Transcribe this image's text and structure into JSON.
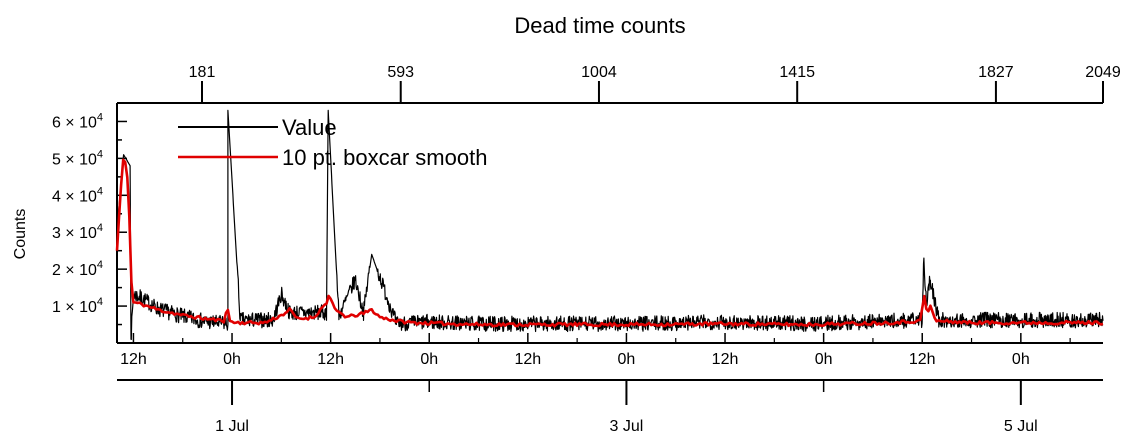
{
  "chart_data": {
    "type": "line",
    "title": "Dead time counts",
    "ylabel": "Counts",
    "ylim": [
      0,
      65000
    ],
    "top_axis": {
      "ticks": [
        181,
        593,
        1004,
        1415,
        1827,
        2049
      ],
      "labels": [
        "181",
        "593",
        "1004",
        "1415",
        "1827",
        "2049"
      ]
    },
    "y_axis": {
      "ticks": [
        10000,
        20000,
        30000,
        40000,
        50000,
        60000
      ],
      "mantissas": [
        "1",
        "2",
        "3",
        "4",
        "5",
        "6"
      ],
      "times": "×",
      "base": "10",
      "exponent": "4"
    },
    "time_axis": {
      "range_hours": [
        -14,
        106
      ],
      "hour_ticks": [
        -12,
        0,
        12,
        24,
        36,
        48,
        60,
        72,
        84,
        96
      ],
      "hour_labels": [
        "12h",
        "0h",
        "12h",
        "0h",
        "12h",
        "0h",
        "12h",
        "0h",
        "12h",
        "0h"
      ],
      "date_ticks": [
        0,
        48,
        96
      ],
      "date_labels": [
        "1 Jul",
        "3 Jul",
        "5 Jul"
      ]
    },
    "legend": {
      "position": "top-left",
      "entries": [
        {
          "label": "Value",
          "color": "#000000"
        },
        {
          "label": "10 pt. boxcar smooth",
          "color": "#e00000"
        }
      ]
    },
    "series": [
      {
        "name": "Value",
        "color": "#000000",
        "x_hours": [
          -14,
          -13.2,
          -12.4,
          -12.3,
          -12,
          -11,
          -9,
          -6,
          -3,
          -0.5,
          -0.5,
          1,
          5,
          6,
          7,
          11.5,
          11.7,
          13,
          15,
          16,
          17,
          20,
          24,
          30,
          40,
          50,
          60,
          70,
          84,
          84.2,
          84.5,
          84.8,
          85,
          86,
          90,
          96,
          106
        ],
        "y_values": [
          31000,
          51000,
          48000,
          1000,
          13000,
          12000,
          9000,
          7000,
          5500,
          5000,
          63000,
          6000,
          6000,
          13000,
          8000,
          8000,
          63000,
          7000,
          17000,
          8000,
          24000,
          5000,
          5500,
          5000,
          5000,
          5000,
          5500,
          5000,
          6000,
          23000,
          10000,
          16000,
          17000,
          6000,
          6000,
          6000,
          6000
        ]
      },
      {
        "name": "10 pt. boxcar smooth",
        "color": "#e00000",
        "x_hours": [
          -14,
          -13.6,
          -13.2,
          -12.8,
          -12.4,
          -12.2,
          -12,
          -11,
          -9,
          -6,
          -3,
          -1,
          -0.6,
          -0.3,
          0.5,
          4,
          6,
          7,
          8,
          10,
          11.5,
          11.8,
          12.5,
          14,
          16,
          17,
          18,
          20,
          22,
          30,
          40,
          50,
          60,
          70,
          80,
          83.8,
          84.2,
          84.6,
          85,
          85.6,
          90,
          96,
          100,
          106
        ],
        "y_values": [
          25000,
          40000,
          51000,
          47000,
          30000,
          12000,
          11000,
          10500,
          9000,
          7500,
          6500,
          6000,
          10000,
          6000,
          5500,
          5500,
          7500,
          9000,
          6500,
          7000,
          11000,
          13000,
          9000,
          7000,
          8000,
          9000,
          7000,
          6000,
          5500,
          5000,
          5000,
          5000,
          5200,
          5000,
          5500,
          6000,
          13000,
          8000,
          10000,
          6000,
          5500,
          5500,
          5500,
          5500
        ]
      }
    ]
  }
}
